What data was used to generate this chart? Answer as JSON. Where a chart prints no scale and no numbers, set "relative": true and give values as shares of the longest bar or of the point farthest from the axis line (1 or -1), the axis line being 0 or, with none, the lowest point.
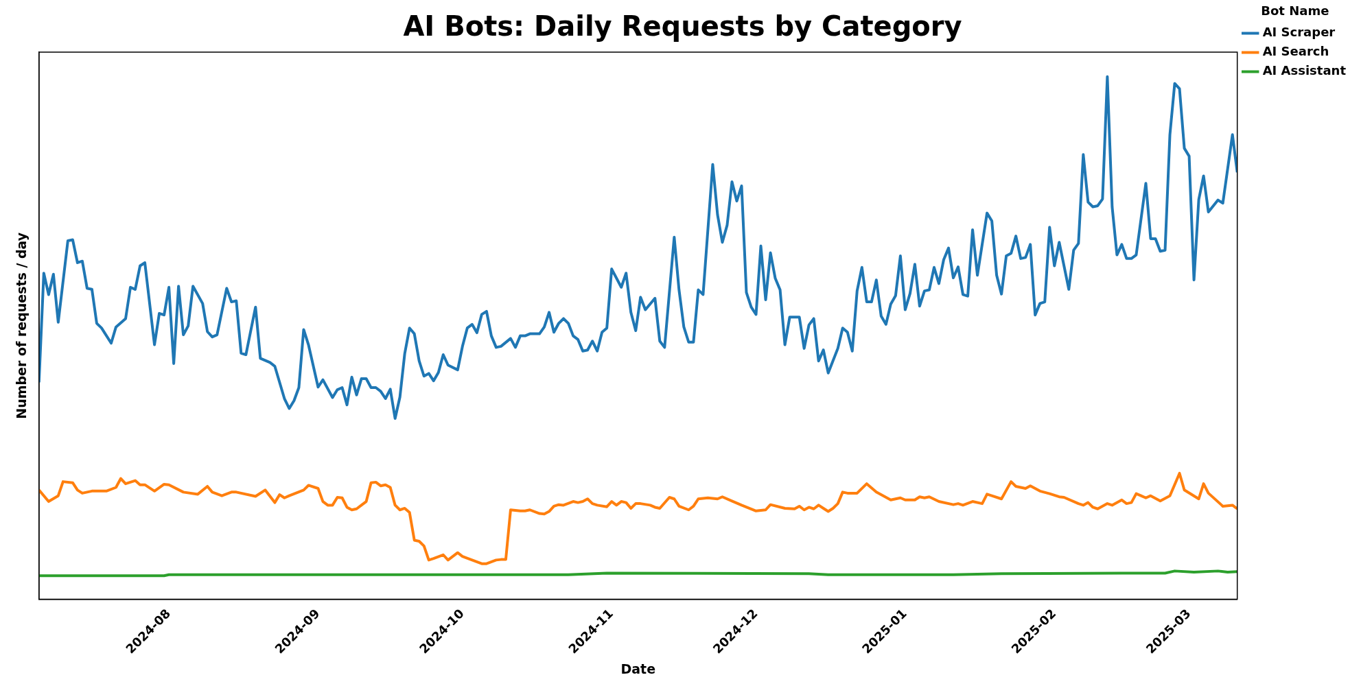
{
  "chart_data": {
    "type": "line",
    "title": "AI Bots: Daily Requests by Category",
    "xlabel": "Date",
    "ylabel": "Number of requests / day",
    "legend_title": "Bot Name",
    "legend": "top right",
    "relative": true,
    "tick_labels": "x",
    "marker": "none",
    "xlim": [
      "2024-07-05",
      "2025-03-11"
    ],
    "xticks": [
      "2024-08",
      "2024-09",
      "2024-10",
      "2024-11",
      "2024-12",
      "2025-01",
      "2025-02",
      "2025-03"
    ],
    "series": [
      {
        "name": "AI Scraper",
        "color": "#1f77b4",
        "x": [
          "2024-07-05",
          "2024-07-06",
          "2024-07-07",
          "2024-07-08",
          "2024-07-09",
          "2024-07-11",
          "2024-07-12",
          "2024-07-13",
          "2024-07-14",
          "2024-07-15",
          "2024-07-16",
          "2024-07-17",
          "2024-07-18",
          "2024-07-20",
          "2024-07-21",
          "2024-07-23",
          "2024-07-24",
          "2024-07-25",
          "2024-07-26",
          "2024-07-27",
          "2024-07-29",
          "2024-07-30",
          "2024-07-31",
          "2024-08-01",
          "2024-08-02",
          "2024-08-03",
          "2024-08-04",
          "2024-08-05",
          "2024-08-06",
          "2024-08-08",
          "2024-08-09",
          "2024-08-10",
          "2024-08-11",
          "2024-08-13",
          "2024-08-14",
          "2024-08-15",
          "2024-08-16",
          "2024-08-17",
          "2024-08-19",
          "2024-08-20",
          "2024-08-22",
          "2024-08-23",
          "2024-08-25",
          "2024-08-26",
          "2024-08-27",
          "2024-08-28",
          "2024-08-29",
          "2024-08-30",
          "2024-09-01",
          "2024-09-02",
          "2024-09-04",
          "2024-09-05",
          "2024-09-06",
          "2024-09-07",
          "2024-09-08",
          "2024-09-09",
          "2024-09-10",
          "2024-09-11",
          "2024-09-12",
          "2024-09-13",
          "2024-09-14",
          "2024-09-15",
          "2024-09-16",
          "2024-09-17",
          "2024-09-18",
          "2024-09-19",
          "2024-09-20",
          "2024-09-21",
          "2024-09-22",
          "2024-09-23",
          "2024-09-24",
          "2024-09-25",
          "2024-09-26",
          "2024-09-27",
          "2024-09-28",
          "2024-09-30",
          "2024-10-01",
          "2024-10-02",
          "2024-10-03",
          "2024-10-04",
          "2024-10-05",
          "2024-10-06",
          "2024-10-07",
          "2024-10-08",
          "2024-10-09",
          "2024-10-11",
          "2024-10-12",
          "2024-10-13",
          "2024-10-14",
          "2024-10-15",
          "2024-10-17",
          "2024-10-18",
          "2024-10-19",
          "2024-10-20",
          "2024-10-21",
          "2024-10-22",
          "2024-10-23",
          "2024-10-24",
          "2024-10-25",
          "2024-10-26",
          "2024-10-27",
          "2024-10-28",
          "2024-10-29",
          "2024-10-30",
          "2024-10-31",
          "2024-11-01",
          "2024-11-03",
          "2024-11-04",
          "2024-11-05",
          "2024-11-06",
          "2024-11-07",
          "2024-11-08",
          "2024-11-10",
          "2024-11-11",
          "2024-11-12",
          "2024-11-14",
          "2024-11-15",
          "2024-11-16",
          "2024-11-17",
          "2024-11-18",
          "2024-11-19",
          "2024-11-20",
          "2024-11-22",
          "2024-11-23",
          "2024-11-24",
          "2024-11-25",
          "2024-11-26",
          "2024-11-27",
          "2024-11-28",
          "2024-11-29",
          "2024-11-30",
          "2024-12-01",
          "2024-12-02",
          "2024-12-03",
          "2024-12-04",
          "2024-12-05",
          "2024-12-06",
          "2024-12-07",
          "2024-12-08",
          "2024-12-10",
          "2024-12-11",
          "2024-12-12",
          "2024-12-13",
          "2024-12-14",
          "2024-12-15",
          "2024-12-16",
          "2024-12-18",
          "2024-12-19",
          "2024-12-20",
          "2024-12-21",
          "2024-12-22",
          "2024-12-23",
          "2024-12-24",
          "2024-12-25",
          "2024-12-26",
          "2024-12-27",
          "2024-12-28",
          "2024-12-29",
          "2024-12-30",
          "2024-12-31",
          "2025-01-01",
          "2025-01-02",
          "2025-01-03",
          "2025-01-04",
          "2025-01-05",
          "2025-01-06",
          "2025-01-07",
          "2025-01-08",
          "2025-01-09",
          "2025-01-10",
          "2025-01-11",
          "2025-01-12",
          "2025-01-13",
          "2025-01-14",
          "2025-01-15",
          "2025-01-16",
          "2025-01-18",
          "2025-01-19",
          "2025-01-20",
          "2025-01-21",
          "2025-01-22",
          "2025-01-23",
          "2025-01-24",
          "2025-01-25",
          "2025-01-26",
          "2025-01-27",
          "2025-01-28",
          "2025-01-29",
          "2025-01-30",
          "2025-01-31",
          "2025-02-01",
          "2025-02-02",
          "2025-02-04",
          "2025-02-05",
          "2025-02-06",
          "2025-02-07",
          "2025-02-08",
          "2025-02-09",
          "2025-02-10",
          "2025-02-11",
          "2025-02-12",
          "2025-02-13",
          "2025-02-14",
          "2025-02-15",
          "2025-02-16",
          "2025-02-17",
          "2025-02-18",
          "2025-02-20",
          "2025-02-21",
          "2025-02-22",
          "2025-02-23",
          "2025-02-24",
          "2025-02-25",
          "2025-02-26",
          "2025-02-27",
          "2025-02-28",
          "2025-03-01",
          "2025-03-02",
          "2025-03-03",
          "2025-03-04",
          "2025-03-05",
          "2025-03-07",
          "2025-03-08",
          "2025-03-10",
          "2025-03-11"
        ],
        "values": [
          0.415,
          0.624,
          0.583,
          0.622,
          0.53,
          0.686,
          0.688,
          0.644,
          0.647,
          0.595,
          0.593,
          0.528,
          0.519,
          0.49,
          0.521,
          0.537,
          0.597,
          0.593,
          0.638,
          0.644,
          0.487,
          0.547,
          0.544,
          0.597,
          0.451,
          0.599,
          0.506,
          0.523,
          0.599,
          0.566,
          0.512,
          0.502,
          0.506,
          0.595,
          0.569,
          0.571,
          0.471,
          0.468,
          0.559,
          0.461,
          0.453,
          0.446,
          0.384,
          0.365,
          0.38,
          0.405,
          0.516,
          0.487,
          0.406,
          0.42,
          0.386,
          0.401,
          0.405,
          0.372,
          0.425,
          0.391,
          0.422,
          0.422,
          0.405,
          0.405,
          0.398,
          0.384,
          0.402,
          0.346,
          0.387,
          0.47,
          0.519,
          0.508,
          0.456,
          0.427,
          0.432,
          0.418,
          0.434,
          0.468,
          0.448,
          0.439,
          0.484,
          0.519,
          0.526,
          0.51,
          0.545,
          0.551,
          0.504,
          0.482,
          0.484,
          0.499,
          0.482,
          0.504,
          0.504,
          0.508,
          0.508,
          0.521,
          0.549,
          0.511,
          0.528,
          0.537,
          0.528,
          0.504,
          0.497,
          0.475,
          0.477,
          0.494,
          0.475,
          0.511,
          0.519,
          0.632,
          0.597,
          0.624,
          0.549,
          0.514,
          0.578,
          0.554,
          0.576,
          0.494,
          0.482,
          0.693,
          0.592,
          0.521,
          0.492,
          0.492,
          0.592,
          0.583,
          0.832,
          0.736,
          0.683,
          0.716,
          0.799,
          0.762,
          0.791,
          0.587,
          0.559,
          0.545,
          0.676,
          0.573,
          0.663,
          0.614,
          0.592,
          0.487,
          0.54,
          0.54,
          0.48,
          0.525,
          0.537,
          0.456,
          0.477,
          0.433,
          0.48,
          0.519,
          0.511,
          0.475,
          0.59,
          0.635,
          0.569,
          0.569,
          0.611,
          0.542,
          0.526,
          0.565,
          0.581,
          0.657,
          0.554,
          0.585,
          0.641,
          0.561,
          0.59,
          0.592,
          0.635,
          0.604,
          0.65,
          0.672,
          0.615,
          0.636,
          0.583,
          0.58,
          0.707,
          0.62,
          0.739,
          0.724,
          0.62,
          0.584,
          0.657,
          0.662,
          0.695,
          0.652,
          0.654,
          0.679,
          0.544,
          0.566,
          0.569,
          0.712,
          0.638,
          0.683,
          0.593,
          0.668,
          0.681,
          0.851,
          0.76,
          0.751,
          0.753,
          0.766,
          1,
          0.751,
          0.659,
          0.679,
          0.652,
          0.652,
          0.659,
          0.796,
          0.69,
          0.69,
          0.666,
          0.668,
          0.889,
          0.987,
          0.977,
          0.863,
          0.848,
          0.611,
          0.765,
          0.81,
          0.741,
          0.764,
          0.758,
          0.889,
          0.817
        ]
      },
      {
        "name": "AI Search",
        "color": "#ff7f0e",
        "x": [
          "2024-07-05",
          "2024-07-07",
          "2024-07-09",
          "2024-07-10",
          "2024-07-12",
          "2024-07-13",
          "2024-07-14",
          "2024-07-16",
          "2024-07-19",
          "2024-07-21",
          "2024-07-22",
          "2024-07-23",
          "2024-07-25",
          "2024-07-26",
          "2024-07-27",
          "2024-07-29",
          "2024-07-31",
          "2024-08-01",
          "2024-08-04",
          "2024-08-07",
          "2024-08-09",
          "2024-08-10",
          "2024-08-12",
          "2024-08-14",
          "2024-08-15",
          "2024-08-19",
          "2024-08-21",
          "2024-08-23",
          "2024-08-24",
          "2024-08-25",
          "2024-08-26",
          "2024-08-29",
          "2024-08-30",
          "2024-09-01",
          "2024-09-02",
          "2024-09-03",
          "2024-09-04",
          "2024-09-05",
          "2024-09-06",
          "2024-09-07",
          "2024-09-08",
          "2024-09-09",
          "2024-09-10",
          "2024-09-11",
          "2024-09-12",
          "2024-09-13",
          "2024-09-14",
          "2024-09-15",
          "2024-09-16",
          "2024-09-17",
          "2024-09-18",
          "2024-09-19",
          "2024-09-20",
          "2024-09-21",
          "2024-09-22",
          "2024-09-23",
          "2024-09-24",
          "2024-09-25",
          "2024-09-27",
          "2024-09-28",
          "2024-09-30",
          "2024-10-01",
          "2024-10-03",
          "2024-10-05",
          "2024-10-06",
          "2024-10-08",
          "2024-10-09",
          "2024-10-10",
          "2024-10-11",
          "2024-10-13",
          "2024-10-14",
          "2024-10-15",
          "2024-10-17",
          "2024-10-18",
          "2024-10-19",
          "2024-10-20",
          "2024-10-21",
          "2024-10-22",
          "2024-10-24",
          "2024-10-25",
          "2024-10-26",
          "2024-10-27",
          "2024-10-28",
          "2024-10-29",
          "2024-10-31",
          "2024-11-01",
          "2024-11-02",
          "2024-11-03",
          "2024-11-04",
          "2024-11-05",
          "2024-11-06",
          "2024-11-07",
          "2024-11-09",
          "2024-11-10",
          "2024-11-11",
          "2024-11-13",
          "2024-11-14",
          "2024-11-15",
          "2024-11-17",
          "2024-11-18",
          "2024-11-19",
          "2024-11-21",
          "2024-11-23",
          "2024-11-24",
          "2024-11-26",
          "2024-11-28",
          "2024-12-01",
          "2024-12-03",
          "2024-12-04",
          "2024-12-07",
          "2024-12-09",
          "2024-12-10",
          "2024-12-11",
          "2024-12-12",
          "2024-12-13",
          "2024-12-14",
          "2024-12-15",
          "2024-12-16",
          "2024-12-17",
          "2024-12-18",
          "2024-12-19",
          "2024-12-20",
          "2024-12-22",
          "2024-12-24",
          "2024-12-26",
          "2024-12-29",
          "2024-12-31",
          "2025-01-01",
          "2025-01-03",
          "2025-01-04",
          "2025-01-05",
          "2025-01-06",
          "2025-01-08",
          "2025-01-11",
          "2025-01-12",
          "2025-01-13",
          "2025-01-15",
          "2025-01-17",
          "2025-01-18",
          "2025-01-19",
          "2025-01-21",
          "2025-01-23",
          "2025-01-24",
          "2025-01-26",
          "2025-01-27",
          "2025-01-29",
          "2025-01-31",
          "2025-02-02",
          "2025-02-03",
          "2025-02-06",
          "2025-02-07",
          "2025-02-08",
          "2025-02-09",
          "2025-02-10",
          "2025-02-12",
          "2025-02-13",
          "2025-02-15",
          "2025-02-16",
          "2025-02-17",
          "2025-02-18",
          "2025-02-19",
          "2025-02-20",
          "2025-02-21",
          "2025-02-23",
          "2025-02-25",
          "2025-02-27",
          "2025-02-28",
          "2025-03-03",
          "2025-03-04",
          "2025-03-05",
          "2025-03-08",
          "2025-03-10",
          "2025-03-11"
        ],
        "values": [
          0.209,
          0.187,
          0.198,
          0.225,
          0.223,
          0.209,
          0.203,
          0.207,
          0.207,
          0.214,
          0.231,
          0.221,
          0.227,
          0.219,
          0.219,
          0.207,
          0.22,
          0.219,
          0.205,
          0.201,
          0.216,
          0.205,
          0.198,
          0.205,
          0.205,
          0.197,
          0.209,
          0.185,
          0.2,
          0.194,
          0.198,
          0.209,
          0.218,
          0.212,
          0.187,
          0.18,
          0.18,
          0.195,
          0.194,
          0.176,
          0.171,
          0.173,
          0.18,
          0.187,
          0.223,
          0.224,
          0.217,
          0.219,
          0.214,
          0.18,
          0.171,
          0.174,
          0.166,
          0.113,
          0.111,
          0.102,
          0.075,
          0.078,
          0.085,
          0.075,
          0.089,
          0.082,
          0.075,
          0.068,
          0.068,
          0.075,
          0.076,
          0.076,
          0.171,
          0.169,
          0.169,
          0.171,
          0.164,
          0.163,
          0.168,
          0.178,
          0.181,
          0.18,
          0.187,
          0.185,
          0.187,
          0.192,
          0.183,
          0.18,
          0.177,
          0.187,
          0.18,
          0.187,
          0.185,
          0.174,
          0.183,
          0.183,
          0.18,
          0.176,
          0.174,
          0.195,
          0.192,
          0.178,
          0.171,
          0.178,
          0.192,
          0.194,
          0.192,
          0.196,
          0.188,
          0.18,
          0.169,
          0.171,
          0.181,
          0.174,
          0.173,
          0.178,
          0.171,
          0.176,
          0.173,
          0.18,
          0.174,
          0.168,
          0.174,
          0.183,
          0.205,
          0.203,
          0.203,
          0.221,
          0.205,
          0.19,
          0.194,
          0.19,
          0.19,
          0.196,
          0.194,
          0.196,
          0.187,
          0.181,
          0.183,
          0.18,
          0.187,
          0.183,
          0.201,
          0.198,
          0.192,
          0.225,
          0.216,
          0.212,
          0.217,
          0.207,
          0.202,
          0.196,
          0.195,
          0.183,
          0.18,
          0.185,
          0.176,
          0.173,
          0.183,
          0.18,
          0.19,
          0.183,
          0.185,
          0.202,
          0.198,
          0.194,
          0.198,
          0.188,
          0.198,
          0.241,
          0.209,
          0.192,
          0.221,
          0.203,
          0.178,
          0.18,
          0.173
        ]
      },
      {
        "name": "AI Assistant",
        "color": "#2ca02c",
        "x": [
          "2024-07-05",
          "2024-07-31",
          "2024-08-01",
          "2024-10-23",
          "2024-10-31",
          "2024-12-12",
          "2024-12-16",
          "2025-01-11",
          "2025-01-21",
          "2025-02-15",
          "2025-02-24",
          "2025-02-26",
          "2025-03-02",
          "2025-03-07",
          "2025-03-09",
          "2025-03-11"
        ],
        "values": [
          0.045,
          0.045,
          0.047,
          0.047,
          0.05,
          0.049,
          0.047,
          0.047,
          0.049,
          0.05,
          0.05,
          0.054,
          0.052,
          0.054,
          0.052,
          0.053
        ]
      }
    ]
  }
}
